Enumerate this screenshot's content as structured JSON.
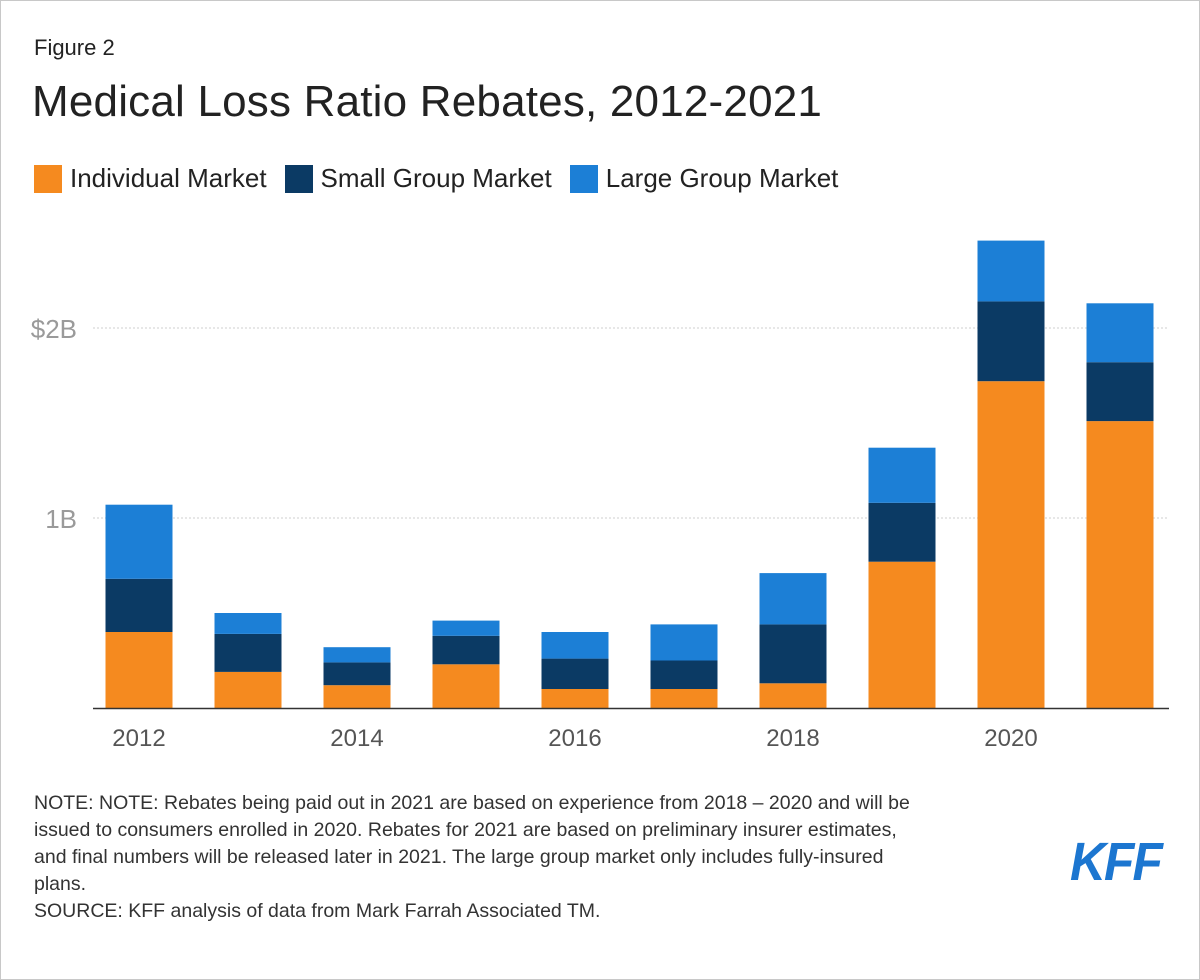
{
  "header": {
    "figure_label": "Figure 2",
    "title": "Medical Loss Ratio Rebates, 2012-2021"
  },
  "chart_data": {
    "type": "bar",
    "stacked": true,
    "categories": [
      "2012",
      "2013",
      "2014",
      "2015",
      "2016",
      "2017",
      "2018",
      "2019",
      "2020",
      "2021"
    ],
    "x_tick_labels": [
      "2012",
      "",
      "2014",
      "",
      "2016",
      "",
      "2018",
      "",
      "2020",
      ""
    ],
    "series": [
      {
        "name": "Individual Market",
        "color": "#f58a1f",
        "values": [
          0.4,
          0.19,
          0.12,
          0.23,
          0.1,
          0.1,
          0.13,
          0.77,
          1.72,
          1.51
        ]
      },
      {
        "name": "Small Group Market",
        "color": "#0b3a64",
        "values": [
          0.28,
          0.2,
          0.12,
          0.15,
          0.16,
          0.15,
          0.31,
          0.31,
          0.42,
          0.31
        ]
      },
      {
        "name": "Large Group Market",
        "color": "#1c7fd6",
        "values": [
          0.39,
          0.11,
          0.08,
          0.08,
          0.14,
          0.19,
          0.27,
          0.29,
          0.32,
          0.31
        ]
      }
    ],
    "ylim": [
      0,
      2.5
    ],
    "yticks": [
      {
        "value": 1,
        "label": "1B"
      },
      {
        "value": 2,
        "label": "$2B"
      }
    ],
    "grid": true,
    "legend": "top-left"
  },
  "notes": {
    "note_lines": [
      "NOTE: NOTE: Rebates being paid out in 2021 are based on experience from 2018 – 2020 and will be",
      "issued to consumers enrolled in 2020. Rebates for 2021 are based on preliminary insurer estimates,",
      "and final numbers will be released later in 2021. The large group market only includes fully-insured",
      "plans."
    ],
    "source": "SOURCE: KFF analysis of data from Mark Farrah Associated TM."
  },
  "logo": {
    "text": "KFF",
    "color": "#1c76d0"
  }
}
